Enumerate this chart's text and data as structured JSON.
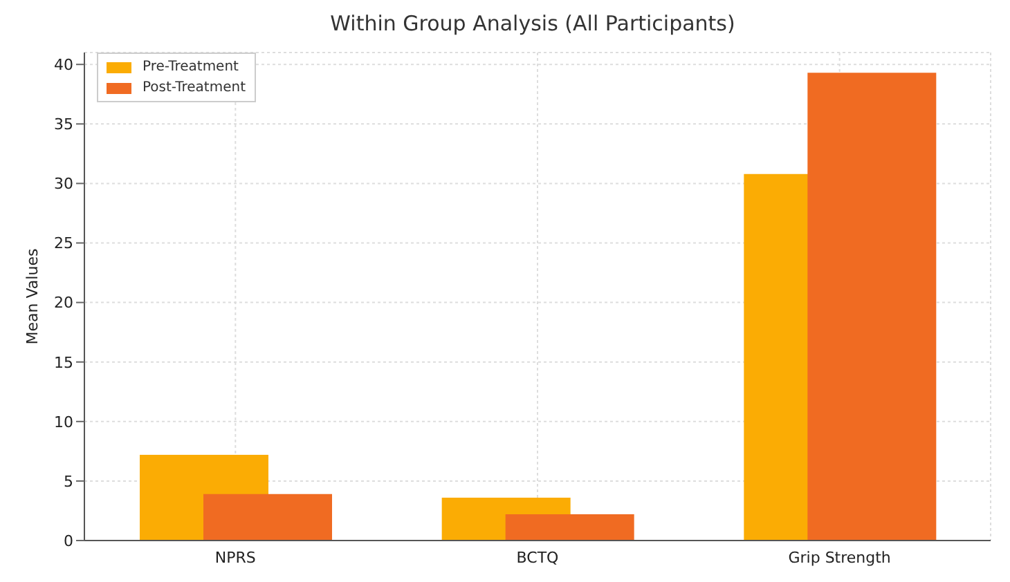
{
  "chart_data": {
    "type": "bar",
    "title": "Within Group Analysis (All Participants)",
    "ylabel": "Mean Values",
    "categories": [
      "NPRS",
      "BCTQ",
      "Grip Strength"
    ],
    "series": [
      {
        "name": "Pre-Treatment",
        "color": "#fbac04",
        "values": [
          7.2,
          3.6,
          30.8
        ]
      },
      {
        "name": "Post-Treatment",
        "color": "#f06b22",
        "values": [
          3.9,
          2.2,
          39.3
        ]
      }
    ],
    "ylim": [
      0,
      41
    ],
    "yticks": [
      0,
      5,
      10,
      15,
      20,
      25,
      30,
      35,
      40
    ],
    "grid": true,
    "legend": "top left"
  }
}
